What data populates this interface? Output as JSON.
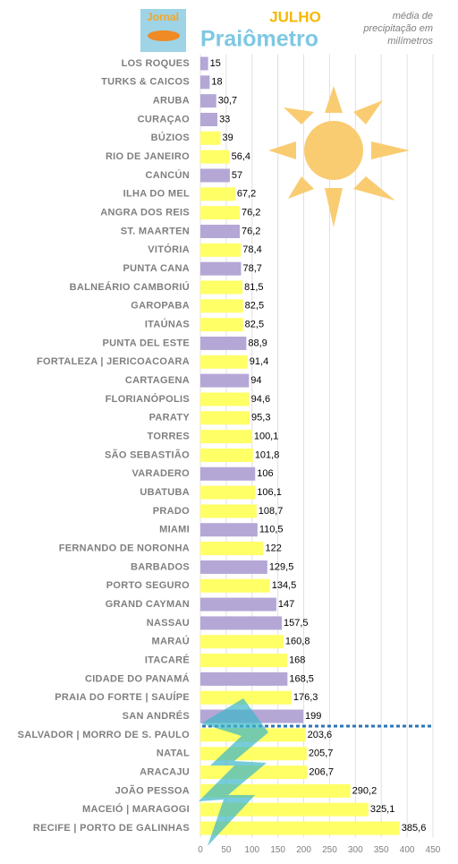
{
  "chart_data": {
    "type": "bar",
    "orientation": "horizontal",
    "logo": "Jornal",
    "title": "JULHO",
    "subtitle": "Praiômetro",
    "note": [
      "média de",
      "precipitação em",
      "milímetros"
    ],
    "categories": [
      "LOS ROQUES",
      "TURKS & CAICOS",
      "ARUBA",
      "CURAÇAO",
      "BÚZIOS",
      "RIO DE JANEIRO",
      "CANCÚN",
      "ILHA DO MEL",
      "ANGRA DOS REIS",
      "ST. MAARTEN",
      "VITÓRIA",
      "PUNTA CANA",
      "BALNEÁRIO CAMBORIÚ",
      "GAROPABA",
      "ITAÚNAS",
      "PUNTA DEL ESTE",
      "FORTALEZA | JERICOACOARA",
      "CARTAGENA",
      "FLORIANÓPOLIS",
      "PARATY",
      "TORRES",
      "SÃO SEBASTIÃO",
      "VARADERO",
      "UBATUBA",
      "PRADO",
      "MIAMI",
      "FERNANDO DE NORONHA",
      "BARBADOS",
      "PORTO SEGURO",
      "GRAND CAYMAN",
      "NASSAU",
      "MARAÚ",
      "ITACARÉ",
      "CIDADE DO PANAMÁ",
      "PRAIA DO FORTE | SAUÍPE",
      "SAN ANDRÉS",
      "SALVADOR | MORRO DE S. PAULO",
      "NATAL",
      "ARACAJU",
      "JOÃO PESSOA",
      "MACEIÓ | MARAGOGI",
      "RECIFE | PORTO DE GALINHAS"
    ],
    "values": [
      15,
      18,
      30.7,
      33,
      39,
      56.4,
      57,
      67.2,
      76.2,
      76.2,
      78.4,
      78.7,
      81.5,
      82.5,
      82.5,
      88.9,
      91.4,
      94,
      94.6,
      95.3,
      100.1,
      101.8,
      106,
      106.1,
      108.7,
      110.5,
      122,
      129.5,
      134.5,
      147,
      157.5,
      160.8,
      168,
      168.5,
      176.3,
      199,
      203.6,
      205.7,
      206.7,
      290.2,
      325.1,
      385.6
    ],
    "value_labels": [
      "15",
      "18",
      "30,7",
      "33",
      "39",
      "56,4",
      "57",
      "67,2",
      "76,2",
      "76,2",
      "78,4",
      "78,7",
      "81,5",
      "82,5",
      "82,5",
      "88,9",
      "91,4",
      "94",
      "94,6",
      "95,3",
      "100,1",
      "101,8",
      "106",
      "106,1",
      "108,7",
      "110,5",
      "122",
      "129,5",
      "134,5",
      "147",
      "157,5",
      "160,8",
      "168",
      "168,5",
      "176,3",
      "199",
      "203,6",
      "205,7",
      "206,7",
      "290,2",
      "325,1",
      "385,6"
    ],
    "colors": [
      "#b4a7d6",
      "#b4a7d6",
      "#b4a7d6",
      "#b4a7d6",
      "#ffff66",
      "#ffff66",
      "#b4a7d6",
      "#ffff66",
      "#ffff66",
      "#b4a7d6",
      "#ffff66",
      "#b4a7d6",
      "#ffff66",
      "#ffff66",
      "#ffff66",
      "#b4a7d6",
      "#ffff66",
      "#b4a7d6",
      "#ffff66",
      "#ffff66",
      "#ffff66",
      "#ffff66",
      "#b4a7d6",
      "#ffff66",
      "#ffff66",
      "#b4a7d6",
      "#ffff66",
      "#b4a7d6",
      "#ffff66",
      "#b4a7d6",
      "#b4a7d6",
      "#ffff66",
      "#ffff66",
      "#b4a7d6",
      "#ffff66",
      "#b4a7d6",
      "#ffff66",
      "#ffff66",
      "#ffff66",
      "#ffff66",
      "#ffff66",
      "#ffff66"
    ],
    "xlim": [
      0,
      450
    ],
    "xticks": [
      0,
      50,
      100,
      150,
      200,
      250,
      300,
      350,
      400,
      450
    ],
    "grid": true
  }
}
